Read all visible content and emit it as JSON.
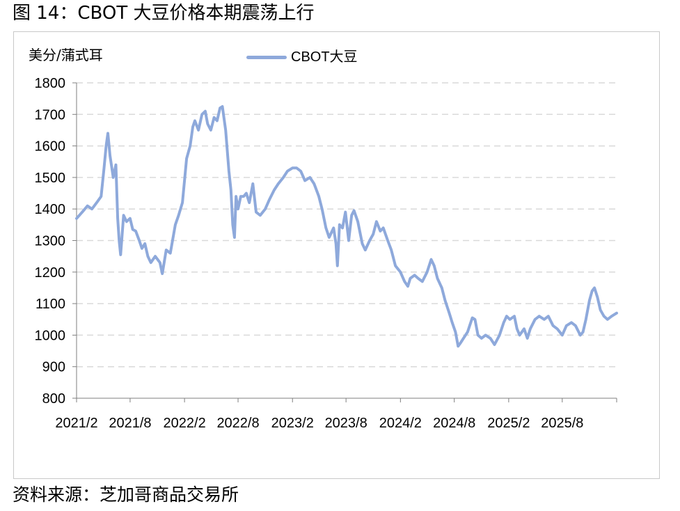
{
  "figure": {
    "title": "图 14：CBOT 大豆价格本期震荡上行",
    "source": "资料来源：芝加哥商品交易所",
    "unit": "美分/蒲式耳"
  },
  "colors": {
    "series": "#8ea9db",
    "grid": "#d9d9d9",
    "axis": "#7f7f7f"
  },
  "chart_data": {
    "type": "line",
    "ylim": [
      800,
      1800
    ],
    "yticks": [
      800,
      900,
      1000,
      1100,
      1200,
      1300,
      1400,
      1500,
      1600,
      1700,
      1800
    ],
    "xlim": [
      "2021-02",
      "2026-02"
    ],
    "xticks": [
      {
        "date": "2021-02",
        "label": "2021/2"
      },
      {
        "date": "2021-08",
        "label": "2021/8"
      },
      {
        "date": "2022-02",
        "label": "2022/2"
      },
      {
        "date": "2022-08",
        "label": "2022/8"
      },
      {
        "date": "2023-02",
        "label": "2023/2"
      },
      {
        "date": "2023-08",
        "label": "2023/8"
      },
      {
        "date": "2024-02",
        "label": "2024/2"
      },
      {
        "date": "2024-08",
        "label": "2024/8"
      },
      {
        "date": "2025-02",
        "label": "2025/2"
      },
      {
        "date": "2025-08",
        "label": "2025/8"
      }
    ],
    "grid": "horizontal dashed",
    "legend_position": "top",
    "series": [
      {
        "name": "CBOT大豆",
        "points": [
          [
            "2021-02-01",
            1370
          ],
          [
            "2021-02-20",
            1390
          ],
          [
            "2021-03-10",
            1410
          ],
          [
            "2021-03-25",
            1400
          ],
          [
            "2021-04-10",
            1420
          ],
          [
            "2021-04-25",
            1440
          ],
          [
            "2021-05-05",
            1530
          ],
          [
            "2021-05-12",
            1600
          ],
          [
            "2021-05-18",
            1640
          ],
          [
            "2021-05-25",
            1570
          ],
          [
            "2021-06-05",
            1500
          ],
          [
            "2021-06-14",
            1540
          ],
          [
            "2021-06-20",
            1370
          ],
          [
            "2021-06-25",
            1300
          ],
          [
            "2021-06-30",
            1255
          ],
          [
            "2021-07-10",
            1380
          ],
          [
            "2021-07-20",
            1360
          ],
          [
            "2021-08-01",
            1370
          ],
          [
            "2021-08-10",
            1335
          ],
          [
            "2021-08-20",
            1330
          ],
          [
            "2021-09-01",
            1300
          ],
          [
            "2021-09-10",
            1275
          ],
          [
            "2021-09-20",
            1290
          ],
          [
            "2021-09-30",
            1250
          ],
          [
            "2021-10-10",
            1230
          ],
          [
            "2021-10-25",
            1250
          ],
          [
            "2021-11-10",
            1230
          ],
          [
            "2021-11-18",
            1195
          ],
          [
            "2021-12-01",
            1270
          ],
          [
            "2021-12-15",
            1260
          ],
          [
            "2022-01-01",
            1350
          ],
          [
            "2022-01-12",
            1380
          ],
          [
            "2022-01-25",
            1420
          ],
          [
            "2022-02-08",
            1560
          ],
          [
            "2022-02-20",
            1600
          ],
          [
            "2022-03-01",
            1660
          ],
          [
            "2022-03-08",
            1680
          ],
          [
            "2022-03-20",
            1650
          ],
          [
            "2022-04-01",
            1700
          ],
          [
            "2022-04-12",
            1710
          ],
          [
            "2022-04-20",
            1670
          ],
          [
            "2022-05-01",
            1650
          ],
          [
            "2022-05-12",
            1690
          ],
          [
            "2022-05-22",
            1680
          ],
          [
            "2022-06-01",
            1720
          ],
          [
            "2022-06-09",
            1725
          ],
          [
            "2022-06-20",
            1650
          ],
          [
            "2022-07-01",
            1520
          ],
          [
            "2022-07-08",
            1460
          ],
          [
            "2022-07-14",
            1350
          ],
          [
            "2022-07-20",
            1310
          ],
          [
            "2022-07-25",
            1440
          ],
          [
            "2022-08-01",
            1400
          ],
          [
            "2022-08-10",
            1440
          ],
          [
            "2022-08-20",
            1440
          ],
          [
            "2022-08-29",
            1450
          ],
          [
            "2022-09-08",
            1420
          ],
          [
            "2022-09-20",
            1480
          ],
          [
            "2022-10-01",
            1390
          ],
          [
            "2022-10-15",
            1380
          ],
          [
            "2022-11-01",
            1400
          ],
          [
            "2022-11-15",
            1430
          ],
          [
            "2022-12-01",
            1460
          ],
          [
            "2022-12-15",
            1480
          ],
          [
            "2023-01-01",
            1500
          ],
          [
            "2023-01-15",
            1520
          ],
          [
            "2023-02-01",
            1530
          ],
          [
            "2023-02-15",
            1530
          ],
          [
            "2023-03-01",
            1520
          ],
          [
            "2023-03-15",
            1490
          ],
          [
            "2023-04-01",
            1500
          ],
          [
            "2023-04-15",
            1480
          ],
          [
            "2023-05-01",
            1440
          ],
          [
            "2023-05-12",
            1400
          ],
          [
            "2023-05-25",
            1340
          ],
          [
            "2023-06-05",
            1310
          ],
          [
            "2023-06-20",
            1340
          ],
          [
            "2023-06-28",
            1290
          ],
          [
            "2023-07-03",
            1220
          ],
          [
            "2023-07-10",
            1350
          ],
          [
            "2023-07-20",
            1340
          ],
          [
            "2023-07-30",
            1390
          ],
          [
            "2023-08-10",
            1300
          ],
          [
            "2023-08-20",
            1380
          ],
          [
            "2023-08-28",
            1395
          ],
          [
            "2023-09-10",
            1360
          ],
          [
            "2023-09-25",
            1290
          ],
          [
            "2023-10-05",
            1270
          ],
          [
            "2023-10-20",
            1300
          ],
          [
            "2023-11-01",
            1320
          ],
          [
            "2023-11-12",
            1360
          ],
          [
            "2023-11-25",
            1330
          ],
          [
            "2023-12-05",
            1340
          ],
          [
            "2023-12-20",
            1300
          ],
          [
            "2024-01-01",
            1270
          ],
          [
            "2024-01-15",
            1220
          ],
          [
            "2024-02-01",
            1200
          ],
          [
            "2024-02-15",
            1170
          ],
          [
            "2024-02-26",
            1155
          ],
          [
            "2024-03-05",
            1180
          ],
          [
            "2024-03-20",
            1190
          ],
          [
            "2024-04-01",
            1180
          ],
          [
            "2024-04-15",
            1170
          ],
          [
            "2024-05-01",
            1200
          ],
          [
            "2024-05-15",
            1240
          ],
          [
            "2024-05-25",
            1220
          ],
          [
            "2024-06-05",
            1180
          ],
          [
            "2024-06-20",
            1150
          ],
          [
            "2024-07-01",
            1110
          ],
          [
            "2024-07-15",
            1070
          ],
          [
            "2024-07-25",
            1040
          ],
          [
            "2024-08-05",
            1010
          ],
          [
            "2024-08-14",
            965
          ],
          [
            "2024-08-22",
            975
          ],
          [
            "2024-09-01",
            990
          ],
          [
            "2024-09-15",
            1010
          ],
          [
            "2024-10-01",
            1055
          ],
          [
            "2024-10-10",
            1050
          ],
          [
            "2024-10-20",
            1000
          ],
          [
            "2024-11-01",
            990
          ],
          [
            "2024-11-15",
            1000
          ],
          [
            "2024-12-01",
            990
          ],
          [
            "2024-12-15",
            970
          ],
          [
            "2025-01-01",
            1000
          ],
          [
            "2025-01-15",
            1040
          ],
          [
            "2025-01-25",
            1060
          ],
          [
            "2025-02-05",
            1050
          ],
          [
            "2025-02-20",
            1060
          ],
          [
            "2025-03-01",
            1020
          ],
          [
            "2025-03-10",
            1000
          ],
          [
            "2025-03-25",
            1020
          ],
          [
            "2025-04-05",
            990
          ],
          [
            "2025-04-15",
            1020
          ],
          [
            "2025-05-01",
            1050
          ],
          [
            "2025-05-15",
            1060
          ],
          [
            "2025-06-01",
            1050
          ],
          [
            "2025-06-15",
            1060
          ],
          [
            "2025-07-01",
            1030
          ],
          [
            "2025-07-15",
            1020
          ],
          [
            "2025-08-01",
            1000
          ],
          [
            "2025-08-15",
            1030
          ],
          [
            "2025-09-01",
            1040
          ],
          [
            "2025-09-15",
            1030
          ],
          [
            "2025-10-01",
            1000
          ],
          [
            "2025-10-10",
            1010
          ],
          [
            "2025-10-20",
            1050
          ],
          [
            "2025-11-01",
            1110
          ],
          [
            "2025-11-10",
            1140
          ],
          [
            "2025-11-18",
            1150
          ],
          [
            "2025-11-28",
            1120
          ],
          [
            "2025-12-08",
            1080
          ],
          [
            "2025-12-20",
            1060
          ],
          [
            "2026-01-01",
            1050
          ],
          [
            "2026-01-15",
            1060
          ],
          [
            "2026-02-01",
            1070
          ]
        ]
      }
    ]
  }
}
